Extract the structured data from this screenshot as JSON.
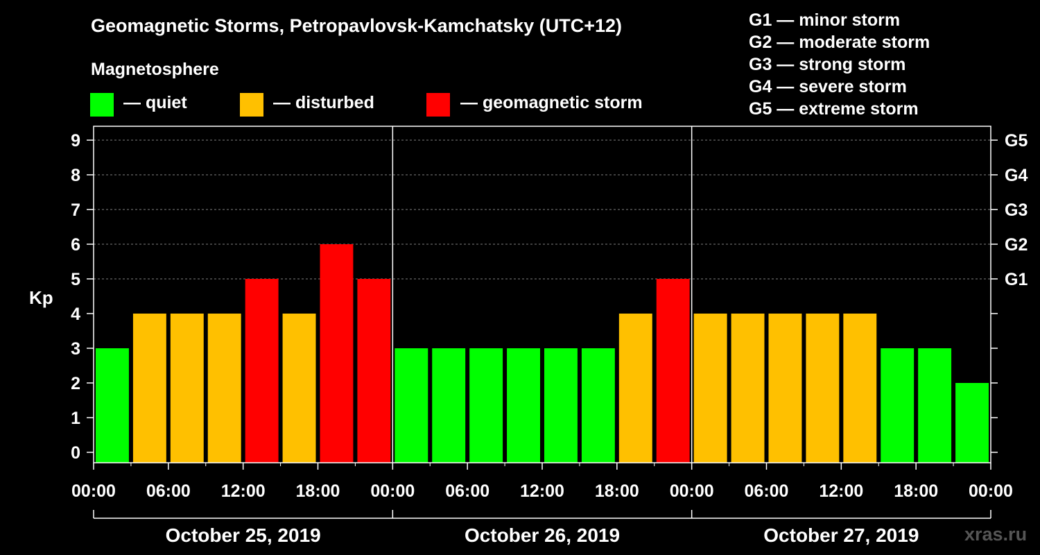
{
  "chart_data": {
    "type": "bar",
    "title": "Geomagnetic Storms, Petropavlovsk-Kamchatsky (UTC+12)",
    "subtitle": "Magnetosphere",
    "ylabel": "Kp",
    "ylim": [
      0,
      9
    ],
    "yticks": [
      "0",
      "1",
      "2",
      "3",
      "4",
      "5",
      "6",
      "7",
      "8",
      "9"
    ],
    "right_ticks": [
      {
        "kp": 5,
        "label": "G1"
      },
      {
        "kp": 6,
        "label": "G2"
      },
      {
        "kp": 7,
        "label": "G3"
      },
      {
        "kp": 8,
        "label": "G4"
      },
      {
        "kp": 9,
        "label": "G5"
      }
    ],
    "time_labels": [
      "00:00",
      "06:00",
      "12:00",
      "18:00",
      "00:00",
      "06:00",
      "12:00",
      "18:00",
      "00:00",
      "06:00",
      "12:00",
      "18:00",
      "00:00"
    ],
    "days": [
      "October 25, 2019",
      "October 26, 2019",
      "October 27, 2019"
    ],
    "interval_hours": 3,
    "values": [
      3,
      4,
      4,
      4,
      5,
      4,
      6,
      5,
      3,
      3,
      3,
      3,
      3,
      3,
      4,
      5,
      4,
      4,
      4,
      4,
      4,
      3,
      3,
      2
    ],
    "grid": "dashed horizontal at Kp 5-9",
    "legend": [
      {
        "label": "— quiet",
        "color": "#00ff00"
      },
      {
        "label": "— disturbed",
        "color": "#ffc000"
      },
      {
        "label": "— geomagnetic storm",
        "color": "#ff0000"
      }
    ],
    "colors": {
      "quiet": "#00ff00",
      "disturbed": "#ffc000",
      "storm": "#ff0000"
    },
    "g_scale": [
      "G1 — minor storm",
      "G2 — moderate storm",
      "G3 — strong storm",
      "G4 — severe storm",
      "G5 — extreme storm"
    ]
  },
  "watermark": "xras.ru"
}
